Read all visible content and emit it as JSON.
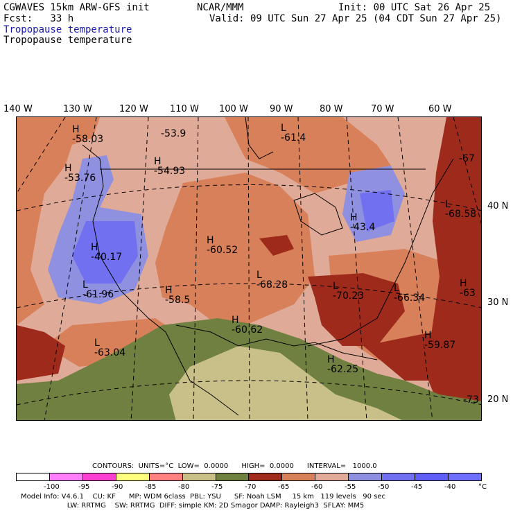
{
  "header": {
    "model": "CGWAVES 15km ARW-GFS init",
    "org": "NCAR/MMM",
    "init": "Init: 00 UTC Sat 26 Apr 25",
    "fcst": "Fcst:   33 h",
    "valid": "Valid: 09 UTC Sun 27 Apr 25 (04 CDT Sun 27 Apr 25)",
    "field_title_1": "Tropopause temperature",
    "field_title_2": "Tropopause temperature"
  },
  "lon_labels": [
    "140 W",
    "130 W",
    "120 W",
    "110 W",
    "100 W",
    "90 W",
    "80 W",
    "70 W",
    "60 W"
  ],
  "lat_labels": [
    "40 N",
    "30 N",
    "20 N"
  ],
  "extrema": [
    {
      "letter": "H",
      "value": "-58.03"
    },
    {
      "letter": "",
      "value": "-53.9"
    },
    {
      "letter": "L",
      "value": "-61.4"
    },
    {
      "letter": "H",
      "value": "-53.76"
    },
    {
      "letter": "H",
      "value": "-54.93"
    },
    {
      "letter": "",
      "value": "-67"
    },
    {
      "letter": "H",
      "value": "-43.4"
    },
    {
      "letter": "L",
      "value": "-68.58"
    },
    {
      "letter": "H",
      "value": "-40.17"
    },
    {
      "letter": "H",
      "value": "-60.52"
    },
    {
      "letter": "L",
      "value": "-61.96"
    },
    {
      "letter": "L",
      "value": "-68.28"
    },
    {
      "letter": "H",
      "value": "-58.5"
    },
    {
      "letter": "L",
      "value": "-70.23"
    },
    {
      "letter": "L",
      "value": "-66.34"
    },
    {
      "letter": "H",
      "value": "-63"
    },
    {
      "letter": "H",
      "value": "-60.62"
    },
    {
      "letter": "L",
      "value": "-63.04"
    },
    {
      "letter": "H",
      "value": "-59.87"
    },
    {
      "letter": "H",
      "value": "-62.25"
    },
    {
      "letter": "",
      "value": "-73"
    }
  ],
  "contours_line": "CONTOURS:  UNITS=°C  LOW=  0.0000      HIGH=  0.0000      INTERVAL=   1000.0",
  "colorbar": {
    "colors": [
      "#ffffff",
      "#ff80ff",
      "#ff40d0",
      "#ffff80",
      "#ff8080",
      "#c8c088",
      "#708040",
      "#9e2a1c",
      "#d8805a",
      "#e0aa98",
      "#9090e0",
      "#7070f0",
      "#6060f8",
      "#7070ff"
    ],
    "ticks": [
      "-100",
      "-95",
      "-90",
      "-85",
      "-80",
      "-75",
      "-70",
      "-65",
      "-60",
      "-55",
      "-50",
      "-45",
      "-40",
      "°C"
    ]
  },
  "footer": {
    "line1": "Model Info: V4.6.1    CU: KF      MP: WDM 6class  PBL: YSU      SF: Noah LSM     15 km   119 levels   90 sec",
    "line2": "                     LW: RRTMG    SW: RRTMG  DIFF: simple KM: 2D Smagor DAMP: Rayleigh3  SFLAY: MM5"
  },
  "colors": {
    "very_cold_blue": "#7878f0",
    "cold_blue": "#9090e0",
    "pink": "#e0aa98",
    "orange": "#d8805a",
    "dark_red": "#9e2a1c",
    "olive": "#708040",
    "light_olive": "#c8c088"
  }
}
